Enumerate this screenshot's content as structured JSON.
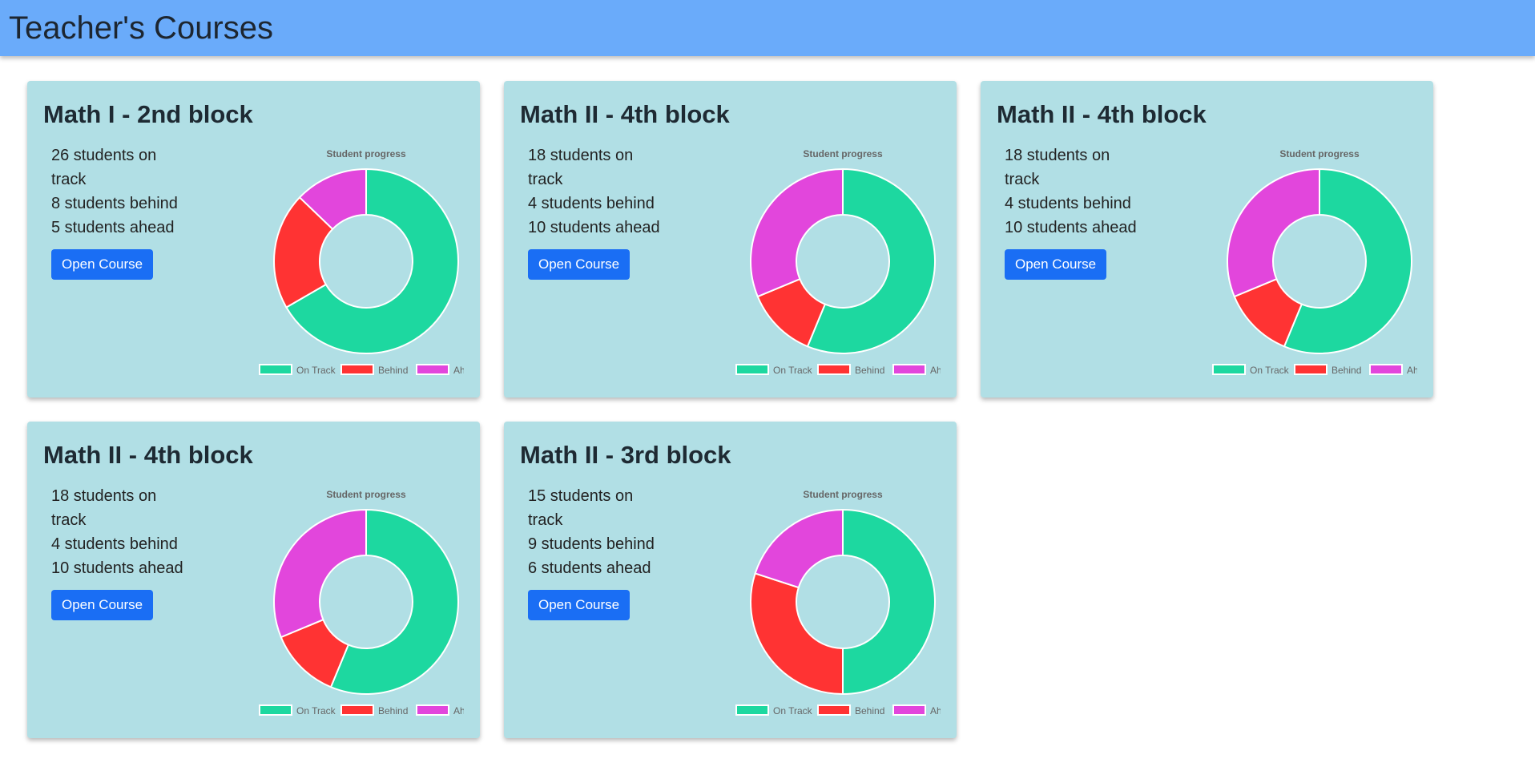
{
  "header": {
    "title": "Teacher's Courses"
  },
  "legend_labels": [
    "On Track",
    "Behind",
    "Ahead"
  ],
  "colors": {
    "on_track": "#1dd8a0",
    "behind": "#ff3333",
    "ahead": "#e246dc",
    "button": "#1a6ef4",
    "header": "#6aabfa",
    "card": "#b1dfe5"
  },
  "courses": [
    {
      "title": "Math I - 2nd block",
      "stats": [
        "26 students on track",
        "8 students behind",
        "5 students ahead"
      ],
      "button_label": "Open Course",
      "chart_title": "Student progress",
      "values": [
        26,
        8,
        5
      ]
    },
    {
      "title": "Math II - 4th block",
      "stats": [
        "18 students on track",
        "4 students behind",
        "10 students ahead"
      ],
      "button_label": "Open Course",
      "chart_title": "Student progress",
      "values": [
        18,
        4,
        10
      ]
    },
    {
      "title": "Math II - 4th block",
      "stats": [
        "18 students on track",
        "4 students behind",
        "10 students ahead"
      ],
      "button_label": "Open Course",
      "chart_title": "Student progress",
      "values": [
        18,
        4,
        10
      ]
    },
    {
      "title": "Math II - 4th block",
      "stats": [
        "18 students on track",
        "4 students behind",
        "10 students ahead"
      ],
      "button_label": "Open Course",
      "chart_title": "Student progress",
      "values": [
        18,
        4,
        10
      ]
    },
    {
      "title": "Math II - 3rd block",
      "stats": [
        "15 students on track",
        "9 students behind",
        "6 students ahead"
      ],
      "button_label": "Open Course",
      "chart_title": "Student progress",
      "values": [
        15,
        9,
        6
      ]
    }
  ],
  "chart_data": [
    {
      "type": "pie",
      "title": "Student progress",
      "categories": [
        "On Track",
        "Behind",
        "Ahead"
      ],
      "values": [
        26,
        8,
        5
      ],
      "legend": "bottom"
    },
    {
      "type": "pie",
      "title": "Student progress",
      "categories": [
        "On Track",
        "Behind",
        "Ahead"
      ],
      "values": [
        18,
        4,
        10
      ],
      "legend": "bottom"
    },
    {
      "type": "pie",
      "title": "Student progress",
      "categories": [
        "On Track",
        "Behind",
        "Ahead"
      ],
      "values": [
        18,
        4,
        10
      ],
      "legend": "bottom"
    },
    {
      "type": "pie",
      "title": "Student progress",
      "categories": [
        "On Track",
        "Behind",
        "Ahead"
      ],
      "values": [
        18,
        4,
        10
      ],
      "legend": "bottom"
    },
    {
      "type": "pie",
      "title": "Student progress",
      "categories": [
        "On Track",
        "Behind",
        "Ahead"
      ],
      "values": [
        15,
        9,
        6
      ],
      "legend": "bottom"
    }
  ]
}
